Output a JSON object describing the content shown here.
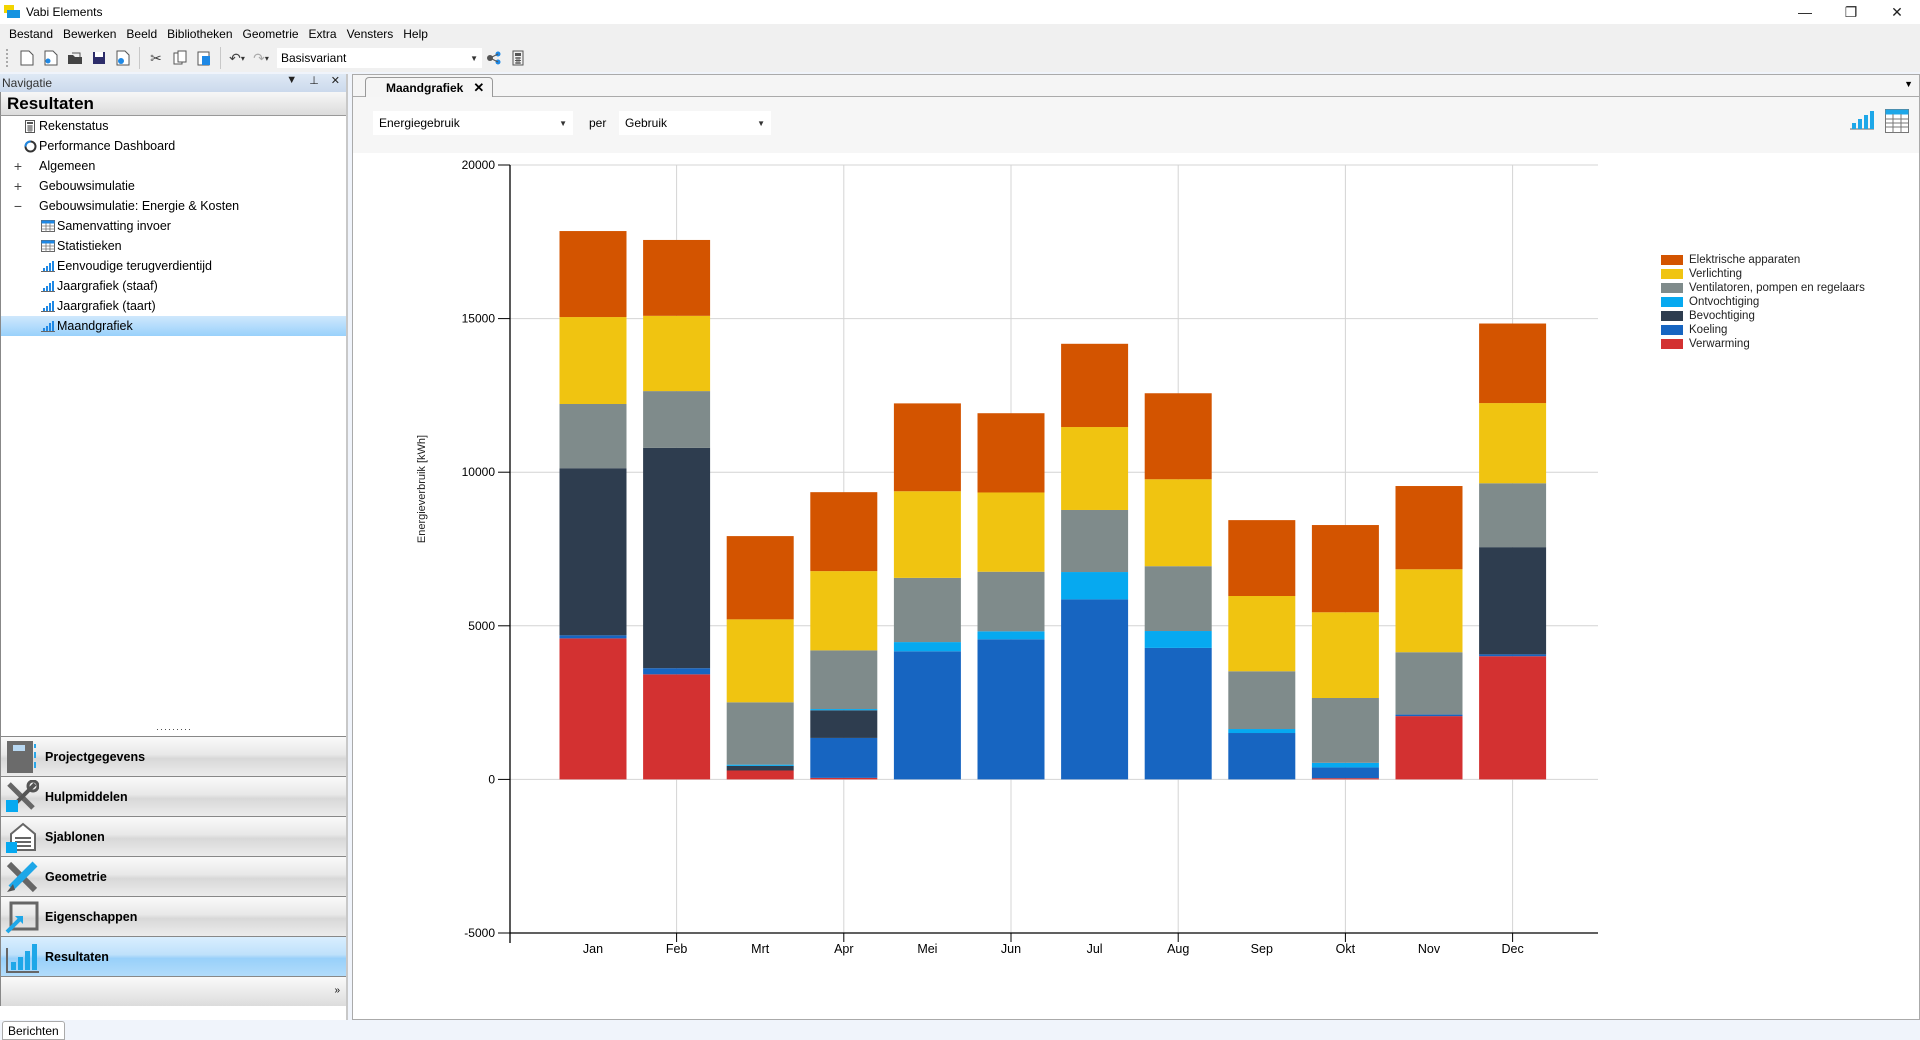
{
  "window": {
    "title": "Vabi Elements",
    "controls": {
      "minimize": "—",
      "restore": "❐",
      "close": "✕"
    }
  },
  "menu": [
    "Bestand",
    "Bewerken",
    "Beeld",
    "Bibliotheken",
    "Geometrie",
    "Extra",
    "Vensters",
    "Help"
  ],
  "toolbar": {
    "variant_value": "Basisvariant",
    "icons": [
      "new-document-icon",
      "new-from-template-icon",
      "open-folder-icon",
      "save-icon",
      "export-icon",
      "cut-icon",
      "copy-icon",
      "paste-icon",
      "undo-icon",
      "redo-icon",
      "share-icon",
      "calculator-icon"
    ]
  },
  "navigation": {
    "header": "Navigatie",
    "section_title": "Resultaten",
    "tree": [
      {
        "label": "Rekenstatus",
        "icon": "calculator-icon",
        "expander": "",
        "level": 0
      },
      {
        "label": "Performance Dashboard",
        "icon": "dashboard-ring-icon",
        "expander": "",
        "level": 0
      },
      {
        "label": "Algemeen",
        "icon": "",
        "expander": "+",
        "level": 0
      },
      {
        "label": "Gebouwsimulatie",
        "icon": "",
        "expander": "+",
        "level": 0
      },
      {
        "label": "Gebouwsimulatie: Energie &  Kosten",
        "icon": "",
        "expander": "−",
        "level": 0
      },
      {
        "label": "Samenvatting invoer",
        "icon": "table-icon",
        "expander": "",
        "level": 1
      },
      {
        "label": "Statistieken",
        "icon": "table-icon",
        "expander": "",
        "level": 1
      },
      {
        "label": "Eenvoudige terugverdientijd",
        "icon": "bar-chart-icon",
        "expander": "",
        "level": 1
      },
      {
        "label": "Jaargrafiek (staaf)",
        "icon": "bar-chart-icon",
        "expander": "",
        "level": 1
      },
      {
        "label": "Jaargrafiek (taart)",
        "icon": "bar-chart-icon",
        "expander": "",
        "level": 1
      },
      {
        "label": "Maandgrafiek",
        "icon": "bar-chart-icon",
        "expander": "",
        "level": 1,
        "selected": true
      }
    ],
    "sections": [
      {
        "label": "Projectgegevens",
        "icon": "project-book-icon"
      },
      {
        "label": "Hulpmiddelen",
        "icon": "tools-icon"
      },
      {
        "label": "Sjablonen",
        "icon": "templates-icon"
      },
      {
        "label": "Geometrie",
        "icon": "geometry-icon"
      },
      {
        "label": "Eigenschappen",
        "icon": "properties-icon"
      },
      {
        "label": "Resultaten",
        "icon": "results-chart-icon",
        "active": true
      }
    ],
    "footer_chevron": "»"
  },
  "document": {
    "tab_label": "Maandgrafiek",
    "tab_close": "✕",
    "quantity_select": "Energiegebruik",
    "per_label": "per",
    "group_select": "Gebruik"
  },
  "status": {
    "tab_label": "Berichten"
  },
  "chart_data": {
    "type": "bar",
    "stacked": true,
    "title": "",
    "xlabel": "",
    "ylabel": "Energieverbruik [kWh]",
    "ylim": [
      -5000,
      20000
    ],
    "yticks": [
      -5000,
      0,
      5000,
      10000,
      15000,
      20000
    ],
    "grid": true,
    "legend_position": "top-right",
    "categories": [
      "Jan",
      "Feb",
      "Mrt",
      "Apr",
      "Mei",
      "Jun",
      "Jul",
      "Aug",
      "Sep",
      "Okt",
      "Nov",
      "Dec"
    ],
    "series": [
      {
        "name": "Verwarming",
        "color": "#d33131",
        "values": [
          4590,
          3420,
          290,
          50,
          0,
          0,
          0,
          0,
          0,
          40,
          2060,
          4010
        ]
      },
      {
        "name": "Koeling",
        "color": "#1765c1",
        "values": [
          100,
          200,
          0,
          1300,
          4170,
          4560,
          5860,
          4280,
          1510,
          350,
          50,
          60
        ]
      },
      {
        "name": "Bevochtiging",
        "color": "#2e3d4f",
        "values": [
          5440,
          7170,
          150,
          900,
          0,
          0,
          0,
          0,
          0,
          0,
          0,
          3490
        ]
      },
      {
        "name": "Ontvochtiging",
        "color": "#06a9f0",
        "values": [
          0,
          0,
          40,
          40,
          300,
          260,
          890,
          550,
          130,
          150,
          0,
          0
        ]
      },
      {
        "name": "Ventilatoren, pompen en regelaars",
        "color": "#7f8b8b",
        "values": [
          2090,
          1850,
          2030,
          1910,
          2090,
          1940,
          2020,
          2110,
          1880,
          2110,
          2030,
          2080
        ]
      },
      {
        "name": "Verlichting",
        "color": "#f0c411",
        "values": [
          2830,
          2450,
          2700,
          2580,
          2820,
          2580,
          2700,
          2830,
          2450,
          2790,
          2700,
          2610
        ]
      },
      {
        "name": "Elektrische apparaten",
        "color": "#d35400",
        "values": [
          2800,
          2470,
          2710,
          2570,
          2860,
          2580,
          2710,
          2800,
          2470,
          2840,
          2710,
          2590
        ]
      }
    ],
    "legend_order": [
      "Elektrische apparaten",
      "Verlichting",
      "Ventilatoren, pompen en regelaars",
      "Ontvochtiging",
      "Bevochtiging",
      "Koeling",
      "Verwarming"
    ]
  }
}
